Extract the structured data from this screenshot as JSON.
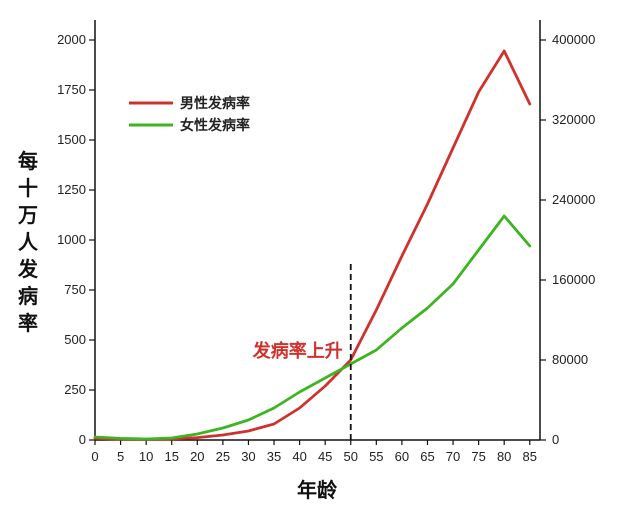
{
  "chart_data": {
    "type": "line",
    "xlabel": "年龄",
    "ylabel": "每十万人发病率",
    "x_ticks": [
      0,
      5,
      10,
      15,
      20,
      25,
      30,
      35,
      40,
      45,
      50,
      55,
      60,
      65,
      70,
      75,
      80,
      85
    ],
    "y_ticks": [
      0,
      250,
      500,
      750,
      1000,
      1250,
      1500,
      1750,
      2000
    ],
    "y2_ticks": [
      0,
      80000,
      160000,
      240000,
      320000,
      400000
    ],
    "xlim": [
      0,
      87
    ],
    "ylim": [
      0,
      2000
    ],
    "y2lim": [
      0,
      400000
    ],
    "legend_position": "top-left",
    "series": [
      {
        "name": "男性发病率",
        "color": "#d0312d",
        "x": [
          0,
          5,
          10,
          15,
          20,
          25,
          30,
          35,
          40,
          45,
          50,
          55,
          60,
          65,
          70,
          75,
          80,
          85
        ],
        "y": [
          8,
          4,
          3,
          5,
          12,
          25,
          45,
          80,
          160,
          270,
          400,
          650,
          920,
          1180,
          1460,
          1740,
          1945,
          1680
        ]
      },
      {
        "name": "女性发病率",
        "color": "#3cb521",
        "x": [
          0,
          5,
          10,
          15,
          20,
          25,
          30,
          35,
          40,
          45,
          50,
          55,
          60,
          65,
          70,
          75,
          80,
          85
        ],
        "y": [
          15,
          8,
          5,
          10,
          30,
          60,
          100,
          160,
          240,
          310,
          380,
          450,
          560,
          660,
          780,
          950,
          1120,
          970
        ]
      }
    ],
    "annotations": [
      {
        "text": "发病率上升",
        "x": 50,
        "color": "#d0312d"
      }
    ],
    "vline": {
      "x": 50,
      "y_top": 880,
      "style": "dashed"
    }
  }
}
